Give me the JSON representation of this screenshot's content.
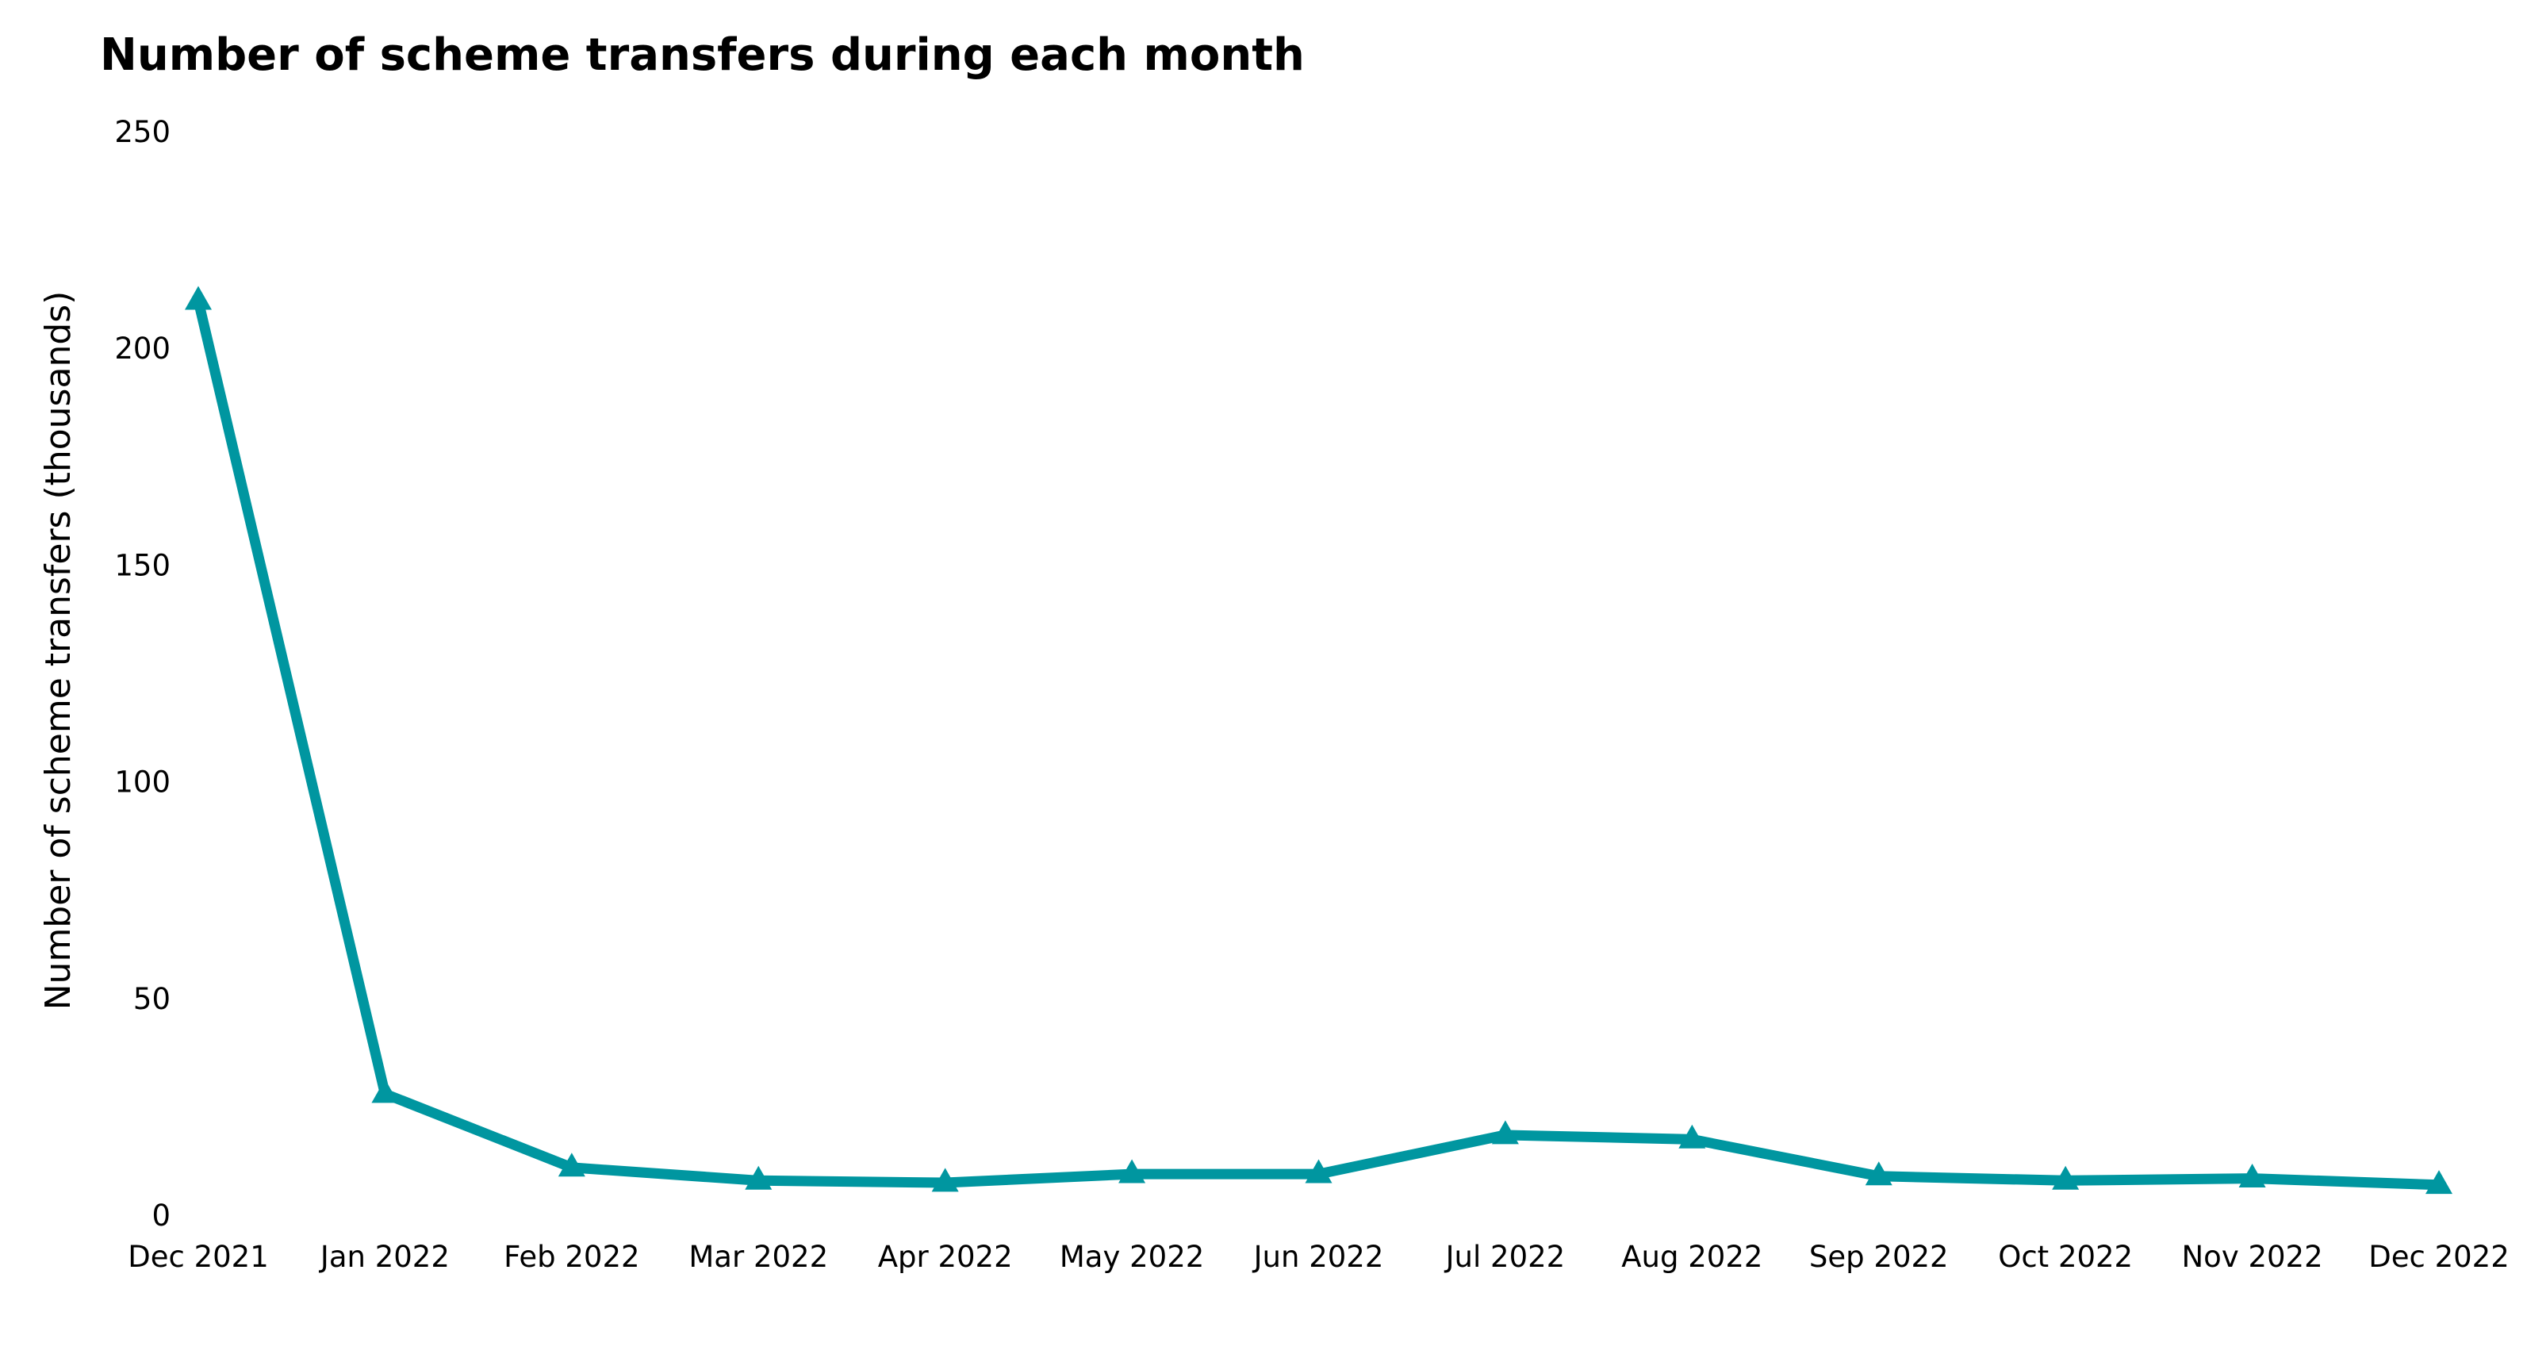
{
  "chart_data": {
    "type": "line",
    "title": "Number of scheme transfers during each month",
    "xlabel": "",
    "ylabel": "Number of scheme transfers (thousands)",
    "categories": [
      "Dec 2021",
      "Jan 2022",
      "Feb 2022",
      "Mar 2022",
      "Apr 2022",
      "May 2022",
      "Jun 2022",
      "Jul 2022",
      "Aug 2022",
      "Sep 2022",
      "Oct 2022",
      "Nov 2022",
      "Dec 2022"
    ],
    "series": [
      {
        "values": [
          211,
          28,
          11,
          8,
          7.5,
          9.5,
          9.5,
          18.5,
          17.5,
          9,
          8,
          8.5,
          7
        ],
        "color": "#0096A0",
        "marker": "triangle"
      }
    ],
    "ylim": [
      0,
      250
    ],
    "yticks": [
      "0",
      "50",
      "100",
      "150",
      "200",
      "250"
    ],
    "grid": false,
    "legend": "none"
  }
}
